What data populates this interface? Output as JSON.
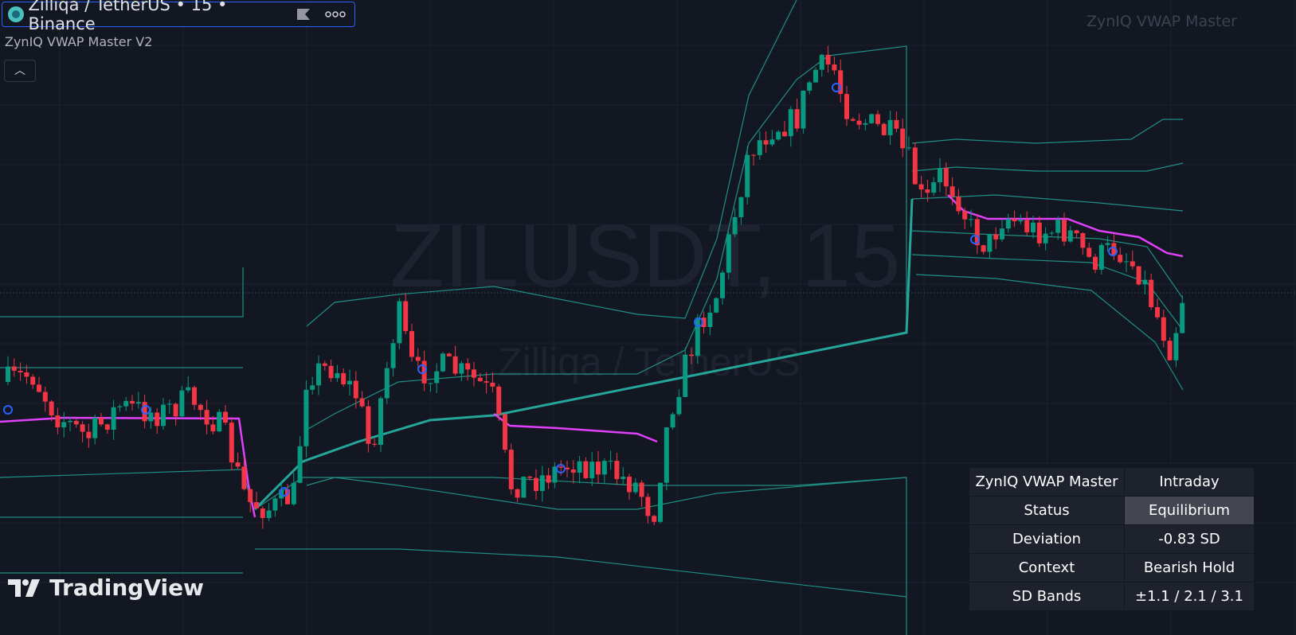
{
  "header": {
    "symbol": "Zilliqa / TetherUS • 15 • Binance",
    "indicator": "ZynIQ VWAP Master V2"
  },
  "watermark": {
    "ticker": "ZILUSDT, 15",
    "name": "Zilliqa / TetherUS"
  },
  "corner_label": "ZynIQ VWAP Master",
  "logo": "TradingView",
  "table": {
    "rows": [
      [
        "ZynIQ VWAP Master",
        "Intraday"
      ],
      [
        "Status",
        "Equilibrium"
      ],
      [
        "Deviation",
        "-0.83 SD"
      ],
      [
        "Context",
        "Bearish Hold"
      ],
      [
        "SD Bands",
        "±1.1 / 2.1 / 3.1"
      ]
    ]
  }
}
